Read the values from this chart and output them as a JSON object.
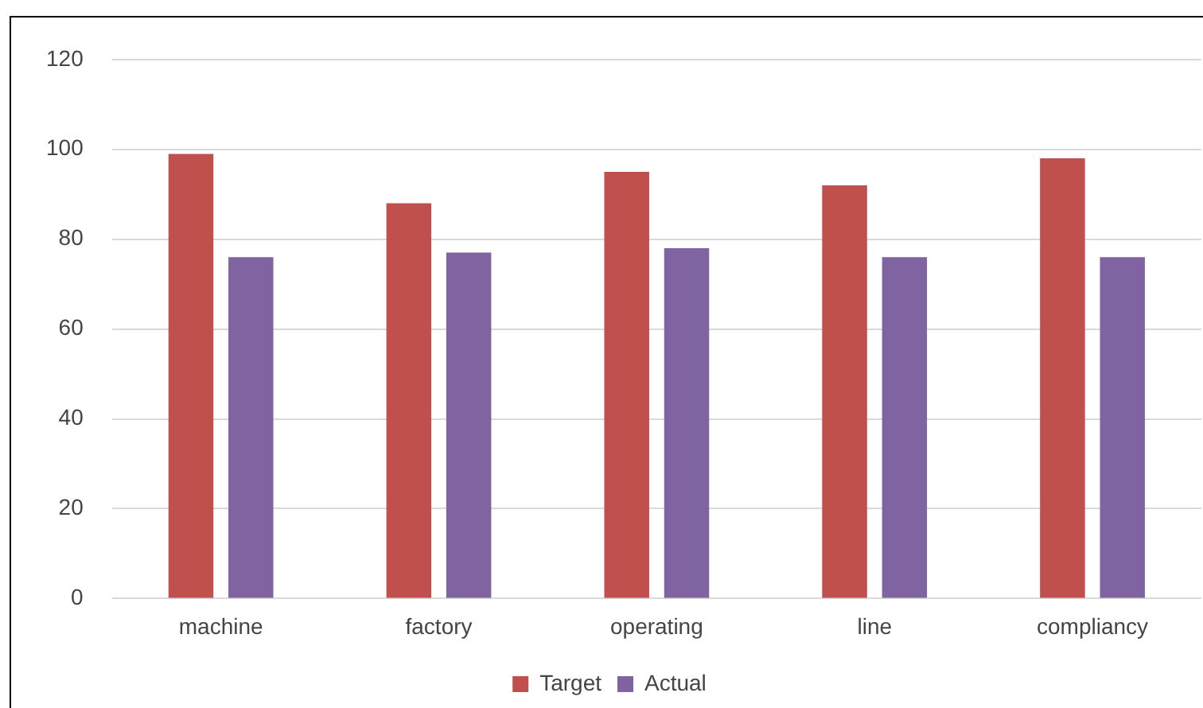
{
  "chart_data": {
    "type": "bar",
    "categories": [
      "machine",
      "factory",
      "operating",
      "line",
      "compliancy"
    ],
    "series": [
      {
        "name": "Target",
        "color": "#c0504d",
        "values": [
          99,
          88,
          95,
          92,
          98
        ]
      },
      {
        "name": "Actual",
        "color": "#8064a2",
        "values": [
          76,
          77,
          78,
          76,
          76
        ]
      }
    ],
    "ylim": [
      0,
      120
    ],
    "yticks": [
      0,
      20,
      40,
      60,
      80,
      100,
      120
    ],
    "grid": "y",
    "legend": "bottom"
  }
}
